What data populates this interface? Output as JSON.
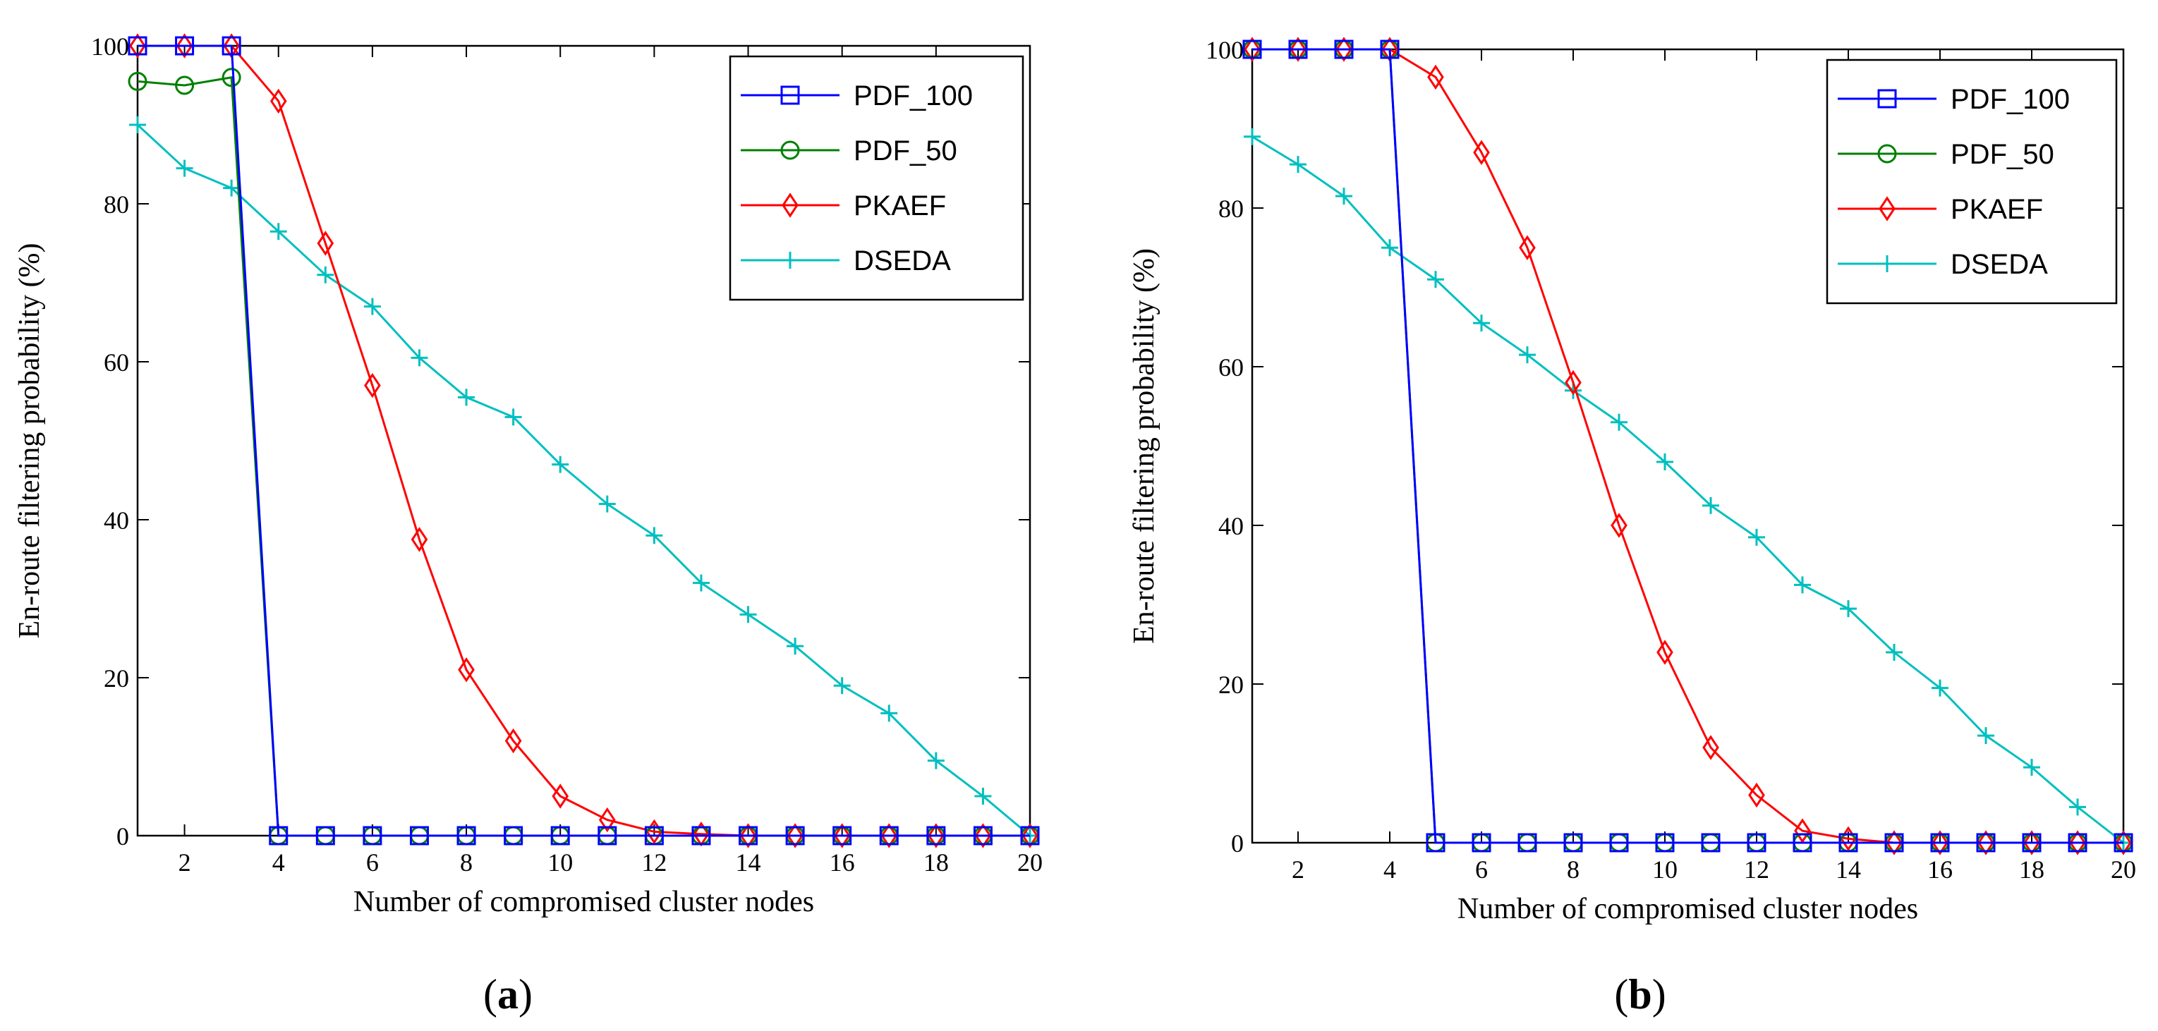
{
  "chart_data": [
    {
      "id": "a",
      "type": "line",
      "panel_label": "(a)",
      "panel_letter": "a",
      "xlabel": "Number of compromised cluster nodes",
      "ylabel": "En-route filtering probability (%)",
      "xlim": [
        1,
        20
      ],
      "ylim": [
        0,
        100
      ],
      "xticks": [
        2,
        4,
        6,
        8,
        10,
        12,
        14,
        16,
        18,
        20
      ],
      "yticks": [
        0,
        20,
        40,
        60,
        80,
        100
      ],
      "legend_position": "top-right",
      "x": [
        1,
        2,
        3,
        4,
        5,
        6,
        7,
        8,
        9,
        10,
        11,
        12,
        13,
        14,
        15,
        16,
        17,
        18,
        19,
        20
      ],
      "series": [
        {
          "name": "PDF_100",
          "color": "#0000ff",
          "marker": "square",
          "values": [
            100,
            100,
            100,
            0,
            0,
            0,
            0,
            0,
            0,
            0,
            0,
            0,
            0,
            0,
            0,
            0,
            0,
            0,
            0,
            0
          ]
        },
        {
          "name": "PDF_50",
          "color": "#008000",
          "marker": "circle",
          "values": [
            95.5,
            95,
            96,
            0,
            0,
            0,
            0,
            0,
            0,
            0,
            0,
            0,
            0,
            0,
            0,
            0,
            0,
            0,
            0,
            0
          ]
        },
        {
          "name": "PKAEF",
          "color": "#ff0000",
          "marker": "diamond",
          "values": [
            100,
            100,
            100,
            93,
            75,
            57,
            37.5,
            21,
            12,
            5,
            2,
            0.5,
            0.2,
            0,
            0,
            0,
            0,
            0,
            0,
            0
          ]
        },
        {
          "name": "DSEDA",
          "color": "#00bfbf",
          "marker": "plus",
          "values": [
            90,
            84.5,
            82,
            76.5,
            71,
            67,
            60.5,
            55.5,
            53,
            47,
            42,
            38,
            32,
            28,
            24,
            19,
            15.5,
            9.5,
            5,
            0
          ]
        }
      ]
    },
    {
      "id": "b",
      "type": "line",
      "panel_label": "(b)",
      "panel_letter": "b",
      "xlabel": "Number of compromised cluster nodes",
      "ylabel": "En-route filtering probability (%)",
      "xlim": [
        1,
        20
      ],
      "ylim": [
        0,
        100
      ],
      "xticks": [
        2,
        4,
        6,
        8,
        10,
        12,
        14,
        16,
        18,
        20
      ],
      "yticks": [
        0,
        20,
        40,
        60,
        80,
        100
      ],
      "legend_position": "top-right",
      "x": [
        1,
        2,
        3,
        4,
        5,
        6,
        7,
        8,
        9,
        10,
        11,
        12,
        13,
        14,
        15,
        16,
        17,
        18,
        19,
        20
      ],
      "series": [
        {
          "name": "PDF_100",
          "color": "#0000ff",
          "marker": "square",
          "values": [
            100,
            100,
            100,
            100,
            0,
            0,
            0,
            0,
            0,
            0,
            0,
            0,
            0,
            0,
            0,
            0,
            0,
            0,
            0,
            0
          ]
        },
        {
          "name": "PDF_50",
          "color": "#008000",
          "marker": "circle",
          "values": [
            100,
            100,
            100,
            100,
            0,
            0,
            0,
            0,
            0,
            0,
            0,
            0,
            0,
            0,
            0,
            0,
            0,
            0,
            0,
            0
          ]
        },
        {
          "name": "PKAEF",
          "color": "#ff0000",
          "marker": "diamond",
          "values": [
            100,
            100,
            100,
            100,
            96.5,
            87,
            75,
            58,
            40,
            24,
            12,
            6,
            1.5,
            0.5,
            0,
            0,
            0,
            0,
            0,
            0
          ]
        },
        {
          "name": "DSEDA",
          "color": "#00bfbf",
          "marker": "plus",
          "values": [
            89,
            85.5,
            81.5,
            75,
            71,
            65.5,
            61.5,
            57,
            53,
            48,
            42.5,
            38.5,
            32.5,
            29.5,
            24,
            19.5,
            13.5,
            9.5,
            4.5,
            0
          ]
        }
      ]
    }
  ]
}
